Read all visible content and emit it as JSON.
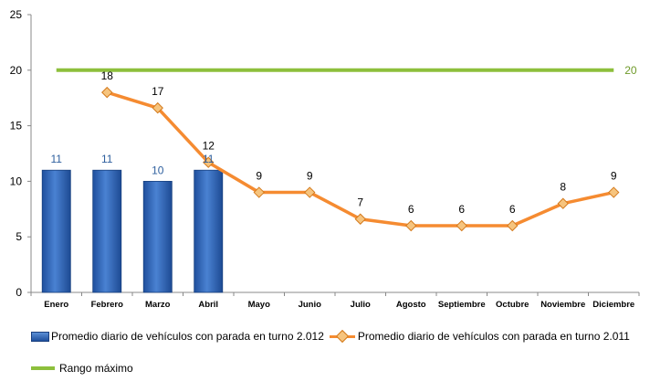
{
  "chart_data": {
    "type": "bar+line",
    "categories": [
      "Enero",
      "Febrero",
      "Marzo",
      "Abril",
      "Mayo",
      "Junio",
      "Julio",
      "Agosto",
      "Septiembre",
      "Octubre",
      "Noviembre",
      "Diciembre"
    ],
    "ylim": [
      0,
      25
    ],
    "yticks": [
      "0",
      "5",
      "10",
      "15",
      "20",
      "25"
    ],
    "grid": false,
    "legend_position": "bottom",
    "series": [
      {
        "name": "Promedio diario de vehículos con parada en turno 2.012",
        "type": "bar",
        "color": "#2e65b8",
        "values": [
          11,
          11,
          10,
          11,
          null,
          null,
          null,
          null,
          null,
          null,
          null,
          null
        ],
        "labels": [
          "11",
          "11",
          "10",
          "11",
          "",
          "",
          "",
          "",
          "",
          "",
          "",
          ""
        ]
      },
      {
        "name": "Promedio diario de vehículos con parada en turno 2.011",
        "type": "line",
        "color": "#f58b31",
        "values": [
          null,
          18,
          16.6,
          11.7,
          9,
          9,
          6.6,
          6,
          6,
          6,
          8,
          9
        ],
        "labels": [
          "",
          "18",
          "17",
          "12",
          "9",
          "9",
          "7",
          "6",
          "6",
          "6",
          "8",
          "9"
        ]
      },
      {
        "name": "Rango máximo",
        "type": "line",
        "color": "#8dbf3c",
        "values": [
          20,
          20,
          20,
          20,
          20,
          20,
          20,
          20,
          20,
          20,
          20,
          20
        ],
        "end_label": "20"
      }
    ]
  }
}
